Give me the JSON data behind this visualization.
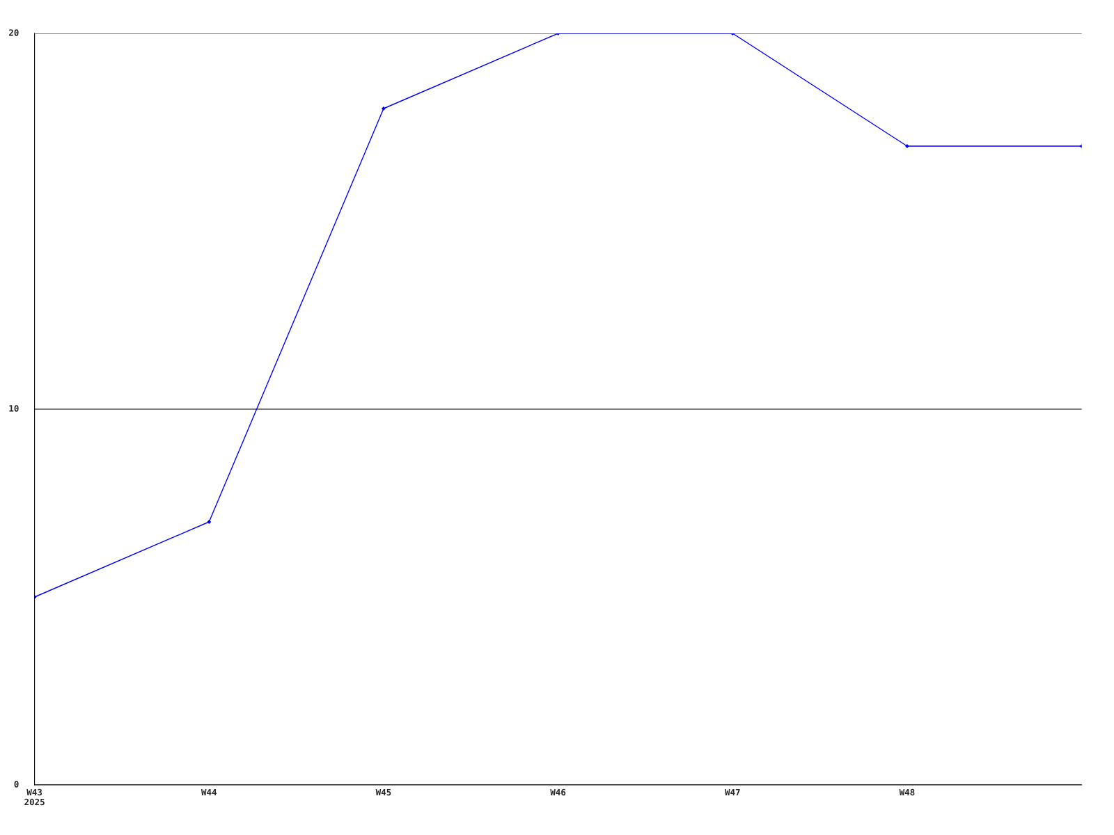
{
  "chart_data": {
    "type": "line",
    "categories": [
      "W43\n2025",
      "W44",
      "W45",
      "W46",
      "W47",
      "W48",
      null
    ],
    "series": [
      {
        "color": "#0000ff",
        "values": [
          5,
          7,
          18,
          20,
          20,
          17,
          17
        ]
      }
    ],
    "ylim": [
      0,
      20
    ],
    "yticks": [
      0,
      10,
      20
    ],
    "grid": "y",
    "marker": "diamond",
    "line_style": "solid"
  }
}
